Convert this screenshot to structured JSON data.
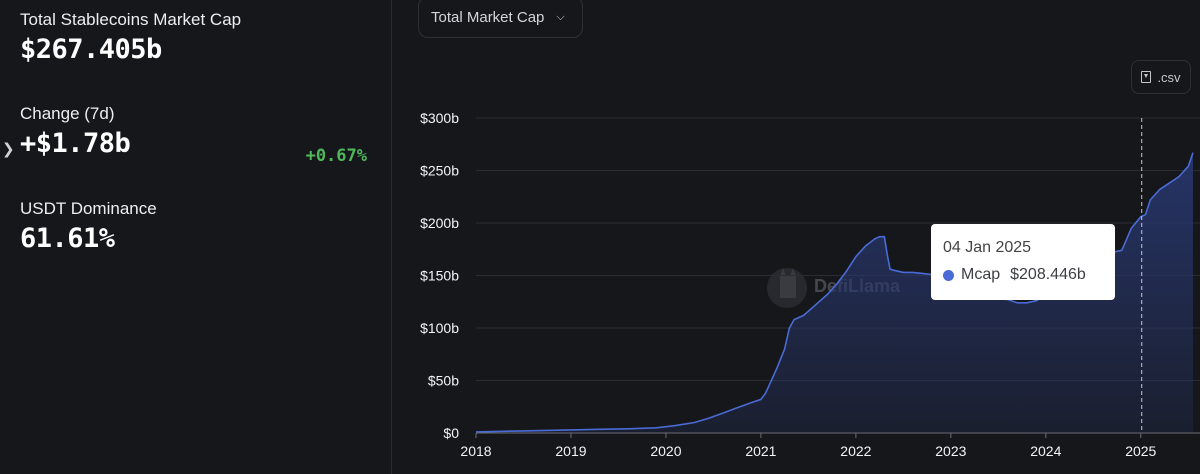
{
  "stats": {
    "market_cap": {
      "label": "Total Stablecoins Market Cap",
      "value": "$267.405b"
    },
    "change": {
      "label": "Change (7d)",
      "value": "+$1.78b",
      "percent": "+0.67%"
    },
    "dominance": {
      "label": "USDT Dominance",
      "value": "61.61%"
    }
  },
  "controls": {
    "metric_dropdown": "Total Market Cap",
    "csv_button": ".csv"
  },
  "watermark": "DefiLlama",
  "tooltip": {
    "date": "04 Jan 2025",
    "series": "Mcap",
    "value": "$208.446b",
    "dot_color": "#4a6bd6"
  },
  "chart_data": {
    "type": "area",
    "title": "",
    "xlabel": "",
    "ylabel": "",
    "x_ticks": [
      "2018",
      "2019",
      "2020",
      "2021",
      "2022",
      "2023",
      "2024",
      "2025"
    ],
    "y_ticks": [
      "$0",
      "$50b",
      "$100b",
      "$150b",
      "$200b",
      "$250b",
      "$300b"
    ],
    "xlim": [
      2018.0,
      2025.55
    ],
    "ylim": [
      0,
      300
    ],
    "grid": "horizontal",
    "line_color": "#4a6bd6",
    "fill_color": "#27366b",
    "series": [
      {
        "x": [
          2018.0,
          2018.5,
          2019.0,
          2019.3,
          2019.6,
          2019.9,
          2020.1,
          2020.3,
          2020.45,
          2020.6,
          2020.75,
          2020.9,
          2021.0,
          2021.05,
          2021.1,
          2021.17,
          2021.25,
          2021.3,
          2021.35,
          2021.45,
          2021.5,
          2021.6,
          2021.7,
          2021.8,
          2021.9,
          2022.0,
          2022.1,
          2022.2,
          2022.25,
          2022.3,
          2022.33,
          2022.36,
          2022.4,
          2022.5,
          2022.6,
          2022.7,
          2022.8,
          2022.9,
          2023.0,
          2023.1,
          2023.2,
          2023.3,
          2023.4,
          2023.5,
          2023.6,
          2023.7,
          2023.8,
          2023.9,
          2024.0,
          2024.1,
          2024.2,
          2024.35,
          2024.5,
          2024.6,
          2024.7,
          2024.8,
          2024.9,
          2025.0,
          2025.05,
          2025.1,
          2025.2,
          2025.3,
          2025.4,
          2025.5,
          2025.55
        ],
        "y": [
          1,
          2,
          3,
          3.5,
          4,
          5,
          7,
          10,
          14,
          19,
          24,
          29,
          32,
          38,
          48,
          62,
          80,
          100,
          108,
          112,
          116,
          124,
          132,
          142,
          154,
          168,
          178,
          185,
          187,
          187,
          170,
          156,
          155,
          153,
          153,
          152,
          151,
          146,
          138,
          135,
          132,
          131,
          128,
          128,
          127,
          124,
          124,
          126,
          132,
          140,
          150,
          156,
          162,
          168,
          172,
          174,
          195,
          206,
          208,
          222,
          232,
          238,
          244,
          254,
          267
        ]
      }
    ],
    "hover": {
      "x": 2025.01,
      "label": "04 Jan 2025"
    }
  }
}
